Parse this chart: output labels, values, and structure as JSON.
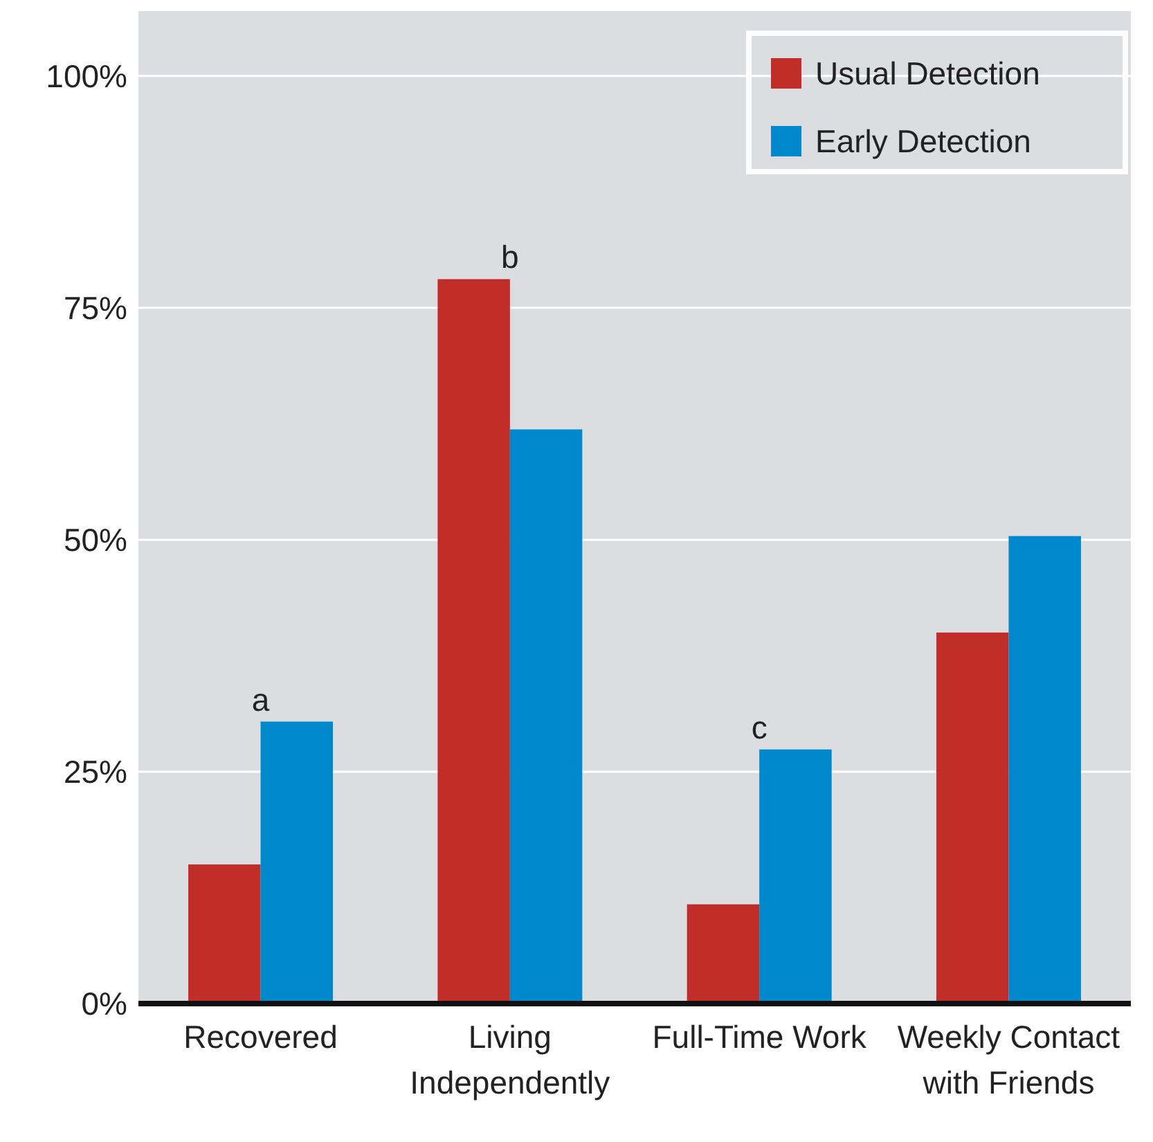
{
  "chart_data": {
    "type": "bar",
    "categories": [
      "Recovered",
      "Living Independently",
      "Full-Time Work",
      "Weekly Contact with Friends"
    ],
    "series": [
      {
        "name": "Usual Detection",
        "color": "#c12e2a",
        "values": [
          15.0,
          78.1,
          10.7,
          40.0
        ]
      },
      {
        "name": "Early Detection",
        "color": "#0088cc",
        "values": [
          30.4,
          61.9,
          27.4,
          50.4
        ]
      }
    ],
    "ylim": [
      0,
      107
    ],
    "yticks": [
      {
        "value": 0,
        "label": "0%"
      },
      {
        "value": 25,
        "label": "25%"
      },
      {
        "value": 50,
        "label": "50%"
      },
      {
        "value": 75,
        "label": "75%"
      },
      {
        "value": 100,
        "label": "100%"
      }
    ],
    "grid": "y",
    "legend": "top right",
    "annotations": [
      {
        "text": "a",
        "x": "Recovered",
        "y": 30.4
      },
      {
        "text": "b",
        "x": "Living Independently",
        "y": 78.1
      },
      {
        "text": "c",
        "x": "Full-Time Work",
        "y": 27.4
      }
    ]
  }
}
